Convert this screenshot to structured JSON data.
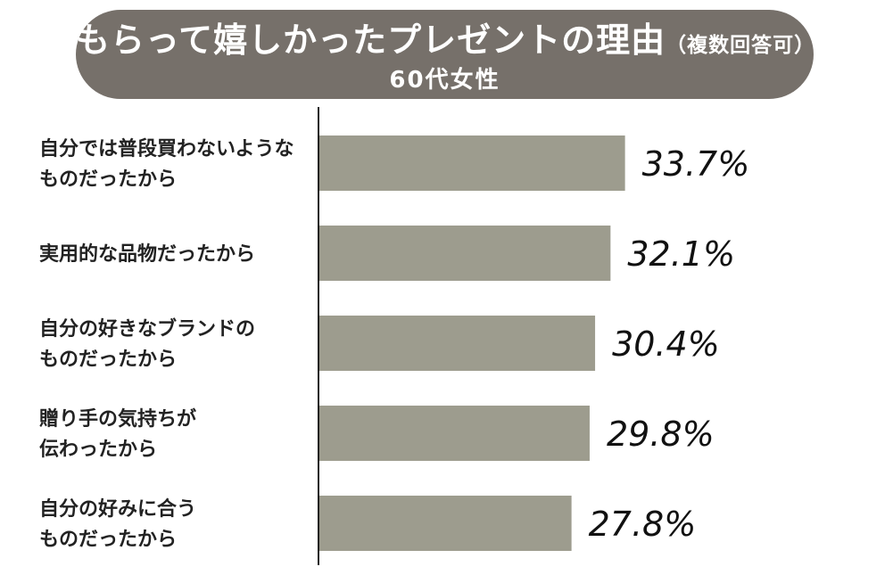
{
  "header": {
    "title": "もらって嬉しかったプレゼントの理由",
    "title_note": "（複数回答可）",
    "subtitle": "60代女性"
  },
  "colors": {
    "title_background": "#76706a",
    "title_text": "#ffffff",
    "bar": "#9d9c8e",
    "axis": "#222222"
  },
  "chart_data": {
    "type": "bar",
    "orientation": "horizontal",
    "title": "もらって嬉しかったプレゼントの理由（複数回答可）",
    "subtitle": "60代女性",
    "categories": [
      [
        "自分では普段買わないような",
        "ものだったから"
      ],
      [
        "実用的な品物だったから"
      ],
      [
        "自分の好きなブランドの",
        "ものだったから"
      ],
      [
        "贈り手の気持ちが",
        "伝わったから"
      ],
      [
        "自分の好みに合う",
        "ものだったから"
      ]
    ],
    "values": [
      33.7,
      32.1,
      30.4,
      29.8,
      27.8
    ],
    "value_labels": [
      "33.7%",
      "32.1%",
      "30.4%",
      "29.8%",
      "27.8%"
    ],
    "unit": "%",
    "xlim": [
      0,
      60
    ],
    "grid": false,
    "legend": "none"
  }
}
